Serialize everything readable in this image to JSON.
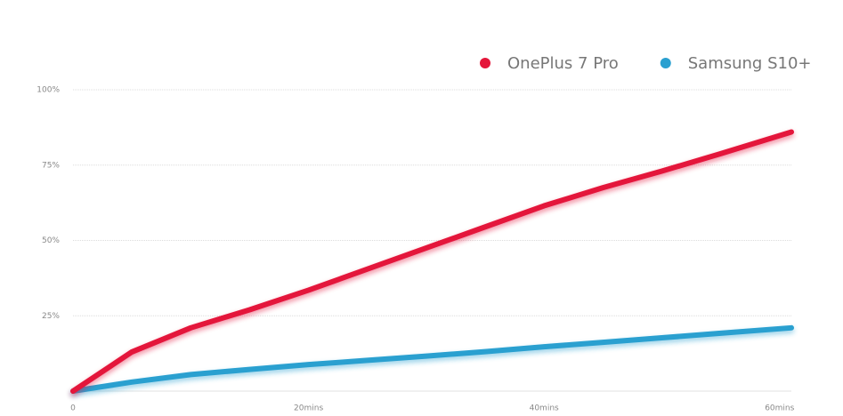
{
  "chart_data": {
    "type": "line",
    "x": [
      0,
      5,
      10,
      15,
      20,
      25,
      30,
      35,
      40,
      45,
      50,
      55,
      61
    ],
    "series": [
      {
        "name": "OnePlus 7 Pro",
        "color": "#e4163a",
        "values": [
          0,
          13,
          21,
          27,
          33.5,
          40.5,
          47.5,
          54.5,
          61.5,
          67.5,
          73,
          78.8,
          86
        ]
      },
      {
        "name": "Samsung S10+",
        "color": "#2aa0d0",
        "values": [
          0,
          3,
          5.5,
          7.2,
          8.8,
          10.2,
          11.6,
          13.1,
          14.7,
          16.2,
          17.7,
          19.2,
          21
        ]
      }
    ],
    "xlim": [
      0,
      61
    ],
    "xticks": [
      0,
      {
        "value": 20,
        "label": "20mins"
      },
      {
        "value": 40,
        "label": "40mins"
      },
      {
        "value": 60,
        "label": "60mins"
      }
    ],
    "ylim": [
      0,
      100
    ],
    "yticks": [
      {
        "value": 25,
        "label": "25%"
      },
      {
        "value": 50,
        "label": "50%"
      },
      {
        "value": 75,
        "label": "75%"
      },
      {
        "value": 100,
        "label": "100%"
      }
    ],
    "grid": true
  }
}
